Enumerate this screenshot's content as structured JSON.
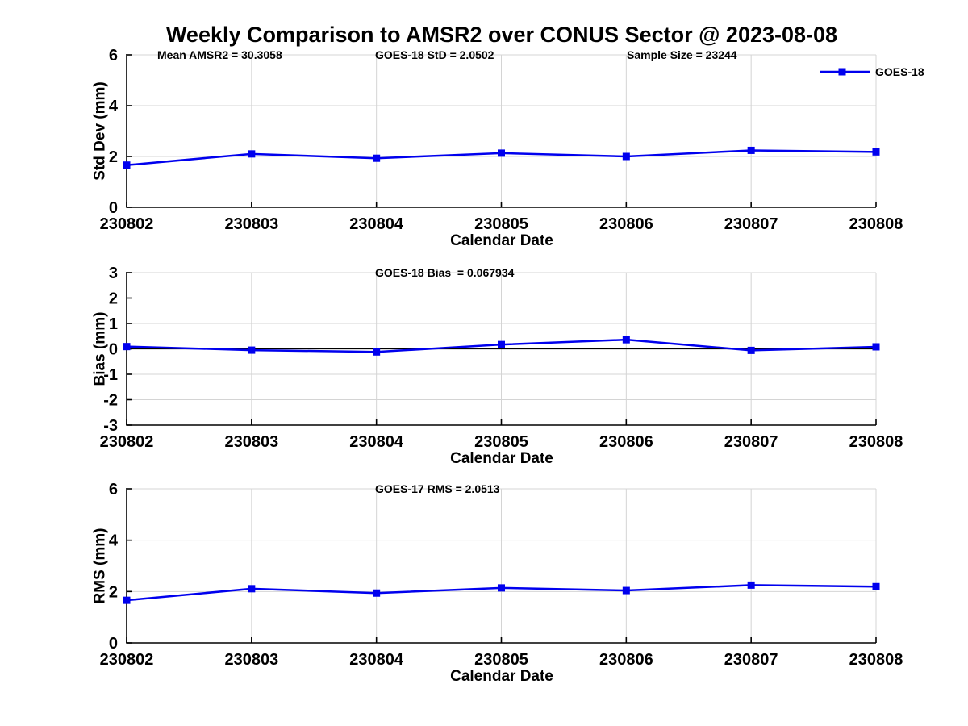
{
  "title": "Weekly Comparison to AMSR2 over CONUS Sector @ 2023-08-08",
  "colors": {
    "series_blue": "#0000ee",
    "grid": "#d4d4d4",
    "axis": "#000000",
    "text": "#000000",
    "background": "#ffffff"
  },
  "chart_data": [
    {
      "type": "line",
      "ylabel": "Std Dev (mm)",
      "xlabel": "Calendar Date",
      "ylim": [
        0,
        6
      ],
      "yticks": [
        0,
        2,
        4,
        6
      ],
      "grid": true,
      "categories": [
        "230802",
        "230803",
        "230804",
        "230805",
        "230806",
        "230807",
        "230808"
      ],
      "series": [
        {
          "name": "GOES-18",
          "color": "#0000ee",
          "marker": "square",
          "values": [
            1.66,
            2.1,
            1.93,
            2.13,
            2.0,
            2.24,
            2.18
          ]
        }
      ],
      "annotations": [
        "Mean AMSR2 = 30.3058",
        "GOES-18 StD = 2.0502",
        "Sample Size = 23244"
      ],
      "legend": {
        "label": "GOES-18",
        "position": "top-right"
      }
    },
    {
      "type": "line",
      "ylabel": "Bias (mm)",
      "xlabel": "Calendar Date",
      "ylim": [
        -3,
        3
      ],
      "yticks": [
        -3,
        -2,
        -1,
        0,
        1,
        2,
        3
      ],
      "zero_line": true,
      "grid": true,
      "categories": [
        "230802",
        "230803",
        "230804",
        "230805",
        "230806",
        "230807",
        "230808"
      ],
      "series": [
        {
          "name": "GOES-18",
          "color": "#0000ee",
          "marker": "square",
          "values": [
            0.09,
            -0.05,
            -0.12,
            0.17,
            0.36,
            -0.06,
            0.08
          ]
        }
      ],
      "annotations": [
        "GOES-18 Bias  = 0.067934"
      ]
    },
    {
      "type": "line",
      "ylabel": "RMS (mm)",
      "xlabel": "Calendar Date",
      "ylim": [
        0,
        6
      ],
      "yticks": [
        0,
        2,
        4,
        6
      ],
      "grid": true,
      "categories": [
        "230802",
        "230803",
        "230804",
        "230805",
        "230806",
        "230807",
        "230808"
      ],
      "series": [
        {
          "name": "GOES-18",
          "color": "#0000ee",
          "marker": "square",
          "values": [
            1.66,
            2.11,
            1.94,
            2.14,
            2.04,
            2.25,
            2.19
          ]
        }
      ],
      "annotations": [
        "GOES-17 RMS = 2.0513"
      ]
    }
  ]
}
